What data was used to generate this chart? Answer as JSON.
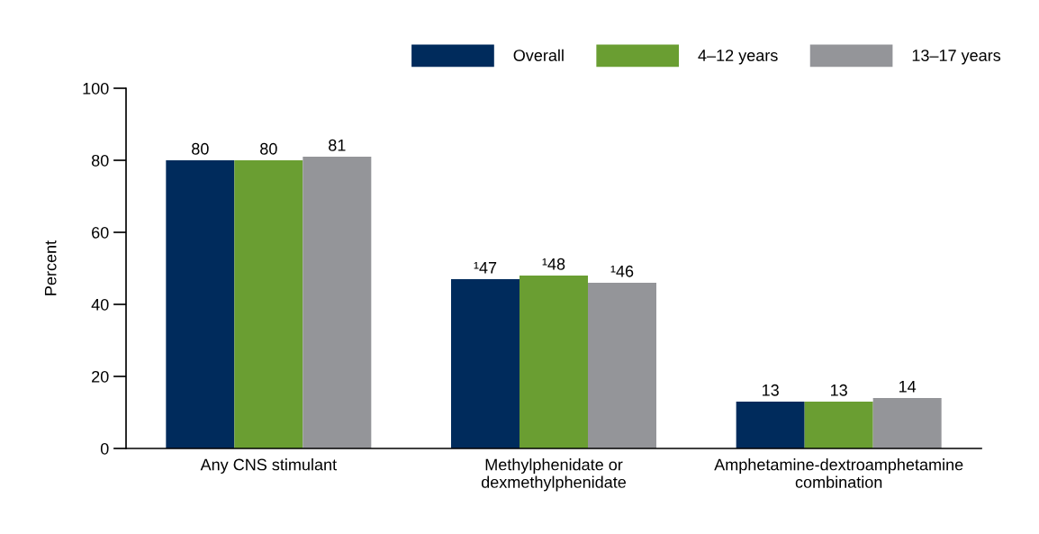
{
  "chart_data": {
    "type": "bar",
    "ylabel": "Percent",
    "categories": [
      "Any CNS stimulant",
      "Methylphenidate or\ndexmethylphenidate",
      "Amphetamine-dextroamphetamine\ncombination"
    ],
    "series": [
      {
        "name": "Overall",
        "color": "#002b5c",
        "values": [
          80,
          47,
          13
        ],
        "value_labels": [
          "80",
          "¹47",
          "13"
        ]
      },
      {
        "name": "4–12 years",
        "color": "#6a9e32",
        "values": [
          80,
          48,
          13
        ],
        "value_labels": [
          "80",
          "¹48",
          "13"
        ]
      },
      {
        "name": "13–17 years",
        "color": "#949599",
        "values": [
          81,
          46,
          14
        ],
        "value_labels": [
          "81",
          "¹46",
          "14"
        ]
      }
    ],
    "ylim": [
      0,
      100
    ],
    "yticks": [
      0,
      20,
      40,
      60,
      80,
      100
    ],
    "grid": false,
    "legend": "top right"
  }
}
